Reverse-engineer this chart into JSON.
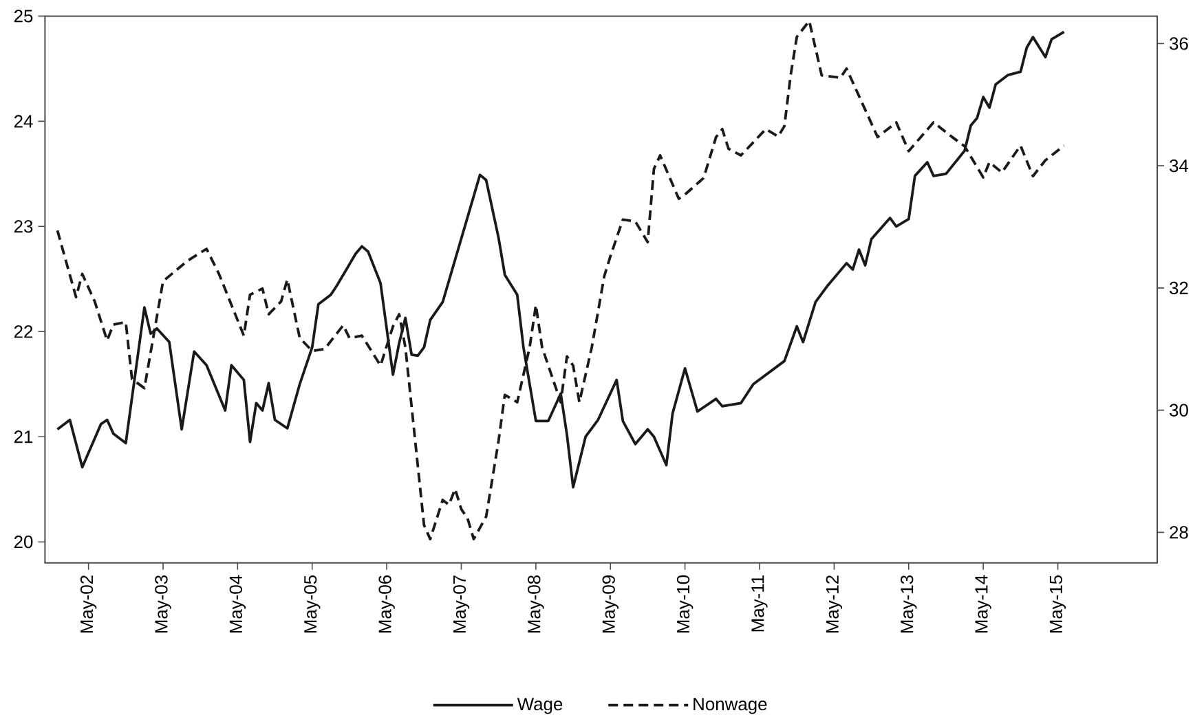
{
  "chart_data": {
    "type": "line",
    "xlim": [
      "2001-10",
      "2016-09"
    ],
    "xticks": [
      {
        "value": "2002-05",
        "label": "May-02"
      },
      {
        "value": "2003-05",
        "label": "May-03"
      },
      {
        "value": "2004-05",
        "label": "May-04"
      },
      {
        "value": "2005-05",
        "label": "May-05"
      },
      {
        "value": "2006-05",
        "label": "May-06"
      },
      {
        "value": "2007-05",
        "label": "May-07"
      },
      {
        "value": "2008-05",
        "label": "May-08"
      },
      {
        "value": "2009-05",
        "label": "May-09"
      },
      {
        "value": "2010-05",
        "label": "May-10"
      },
      {
        "value": "2011-05",
        "label": "May-11"
      },
      {
        "value": "2012-05",
        "label": "May-12"
      },
      {
        "value": "2013-05",
        "label": "May-13"
      },
      {
        "value": "2014-05",
        "label": "May-14"
      },
      {
        "value": "2015-05",
        "label": "May-15"
      }
    ],
    "ylim": [
      19.8,
      25
    ],
    "yticks": [
      20,
      21,
      22,
      23,
      24,
      25
    ],
    "y2lim": [
      27.5,
      36.45
    ],
    "y2ticks": [
      28,
      30,
      32,
      34,
      36
    ],
    "legend": "bottom",
    "series": [
      {
        "name": "Wage",
        "color": "#1a1a1a",
        "line_style": "solid",
        "x": [
          "2001-12",
          "2002-02",
          "2002-04",
          "2002-07",
          "2002-08",
          "2002-09",
          "2002-11",
          "2003-02",
          "2003-03",
          "2003-04",
          "2003-06",
          "2003-08",
          "2003-10",
          "2003-12",
          "2004-03",
          "2004-04",
          "2004-06",
          "2004-07",
          "2004-08",
          "2004-09",
          "2004-10",
          "2004-11",
          "2005-01",
          "2005-03",
          "2005-05",
          "2005-06",
          "2005-08",
          "2005-09",
          "2005-12",
          "2006-01",
          "2006-02",
          "2006-04",
          "2006-06",
          "2006-07",
          "2006-08",
          "2006-09",
          "2006-10",
          "2006-11",
          "2006-12",
          "2007-02",
          "2007-08",
          "2007-09",
          "2007-11",
          "2007-12",
          "2008-02",
          "2008-03",
          "2008-05",
          "2008-07",
          "2008-09",
          "2008-10",
          "2008-11",
          "2009-01",
          "2009-03",
          "2009-06",
          "2009-07",
          "2009-09",
          "2009-11",
          "2009-12",
          "2010-02",
          "2010-03",
          "2010-05",
          "2010-07",
          "2010-10",
          "2010-11",
          "2011-02",
          "2011-04",
          "2011-09",
          "2011-11",
          "2011-12",
          "2012-02",
          "2012-04",
          "2012-07",
          "2012-08",
          "2012-09",
          "2012-10",
          "2012-11",
          "2013-02",
          "2013-03",
          "2013-05",
          "2013-06",
          "2013-08",
          "2013-09",
          "2013-11",
          "2014-02",
          "2014-03",
          "2014-04",
          "2014-05",
          "2014-06",
          "2014-07",
          "2014-09",
          "2014-11",
          "2014-12",
          "2015-01",
          "2015-03",
          "2015-04",
          "2015-06"
        ],
        "values": [
          21.07,
          21.16,
          20.71,
          21.12,
          21.16,
          21.03,
          20.94,
          22.23,
          21.98,
          22.03,
          21.9,
          21.07,
          21.81,
          21.68,
          21.25,
          21.68,
          21.54,
          20.95,
          21.32,
          21.25,
          21.51,
          21.16,
          21.08,
          21.5,
          21.85,
          22.26,
          22.35,
          22.44,
          22.74,
          22.81,
          22.76,
          22.46,
          21.59,
          21.89,
          22.13,
          21.78,
          21.77,
          21.85,
          22.11,
          22.28,
          23.49,
          23.44,
          22.89,
          22.54,
          22.35,
          21.85,
          21.15,
          21.15,
          21.41,
          21.02,
          20.52,
          21.0,
          21.16,
          21.54,
          21.15,
          20.93,
          21.07,
          21.0,
          20.73,
          21.22,
          21.65,
          21.24,
          21.36,
          21.29,
          21.32,
          21.5,
          21.72,
          22.05,
          21.9,
          22.28,
          22.44,
          22.65,
          22.59,
          22.78,
          22.63,
          22.88,
          23.08,
          23.0,
          23.07,
          23.48,
          23.61,
          23.48,
          23.5,
          23.72,
          23.96,
          24.03,
          24.23,
          24.13,
          24.35,
          24.44,
          24.47,
          24.7,
          24.8,
          24.61,
          24.78,
          24.85
        ]
      },
      {
        "name": "Nonwage",
        "color": "#1a1a1a",
        "line_style": "dashed",
        "axis": "y2",
        "x": [
          "2001-12",
          "2002-03",
          "2002-04",
          "2002-06",
          "2002-08",
          "2002-09",
          "2002-11",
          "2002-12",
          "2003-02",
          "2003-05",
          "2003-09",
          "2003-12",
          "2004-02",
          "2004-06",
          "2004-07",
          "2004-09",
          "2004-10",
          "2004-12",
          "2005-01",
          "2005-03",
          "2005-05",
          "2005-07",
          "2005-10",
          "2005-11",
          "2006-01",
          "2006-04",
          "2006-06",
          "2006-07",
          "2006-08",
          "2006-11",
          "2006-12",
          "2007-02",
          "2007-03",
          "2007-04",
          "2007-05",
          "2007-06",
          "2007-07",
          "2007-09",
          "2007-11",
          "2007-12",
          "2008-02",
          "2008-04",
          "2008-05",
          "2008-06",
          "2008-09",
          "2008-10",
          "2008-11",
          "2008-12",
          "2009-02",
          "2009-04",
          "2009-05",
          "2009-07",
          "2009-09",
          "2009-11",
          "2009-12",
          "2010-01",
          "2010-04",
          "2010-05",
          "2010-08",
          "2010-10",
          "2010-11",
          "2010-12",
          "2011-02",
          "2011-06",
          "2011-08",
          "2011-09",
          "2011-10",
          "2011-11",
          "2012-01",
          "2012-03",
          "2012-06",
          "2012-07",
          "2012-12",
          "2013-03",
          "2013-05",
          "2013-09",
          "2013-12",
          "2014-02",
          "2014-05",
          "2014-06",
          "2014-08",
          "2014-11",
          "2015-01",
          "2015-03",
          "2015-06"
        ],
        "values": [
          32.94,
          31.85,
          32.23,
          31.78,
          31.14,
          31.4,
          31.44,
          30.51,
          30.36,
          32.11,
          32.45,
          32.64,
          32.23,
          31.22,
          31.89,
          31.99,
          31.57,
          31.78,
          32.14,
          31.18,
          30.97,
          31.0,
          31.39,
          31.18,
          31.22,
          30.73,
          31.37,
          31.57,
          31.03,
          28.12,
          27.89,
          28.53,
          28.45,
          28.71,
          28.38,
          28.23,
          27.89,
          28.26,
          29.5,
          30.25,
          30.13,
          31.03,
          31.72,
          31.03,
          30.13,
          30.88,
          30.73,
          30.13,
          31.03,
          32.19,
          32.52,
          33.12,
          33.09,
          32.75,
          33.95,
          34.17,
          33.46,
          33.53,
          33.8,
          34.47,
          34.6,
          34.28,
          34.17,
          34.6,
          34.48,
          34.65,
          35.48,
          36.11,
          36.37,
          35.48,
          35.44,
          35.59,
          34.47,
          34.71,
          34.24,
          34.71,
          34.47,
          34.32,
          33.81,
          34.06,
          33.89,
          34.33,
          33.83,
          34.09,
          34.33
        ]
      }
    ]
  }
}
